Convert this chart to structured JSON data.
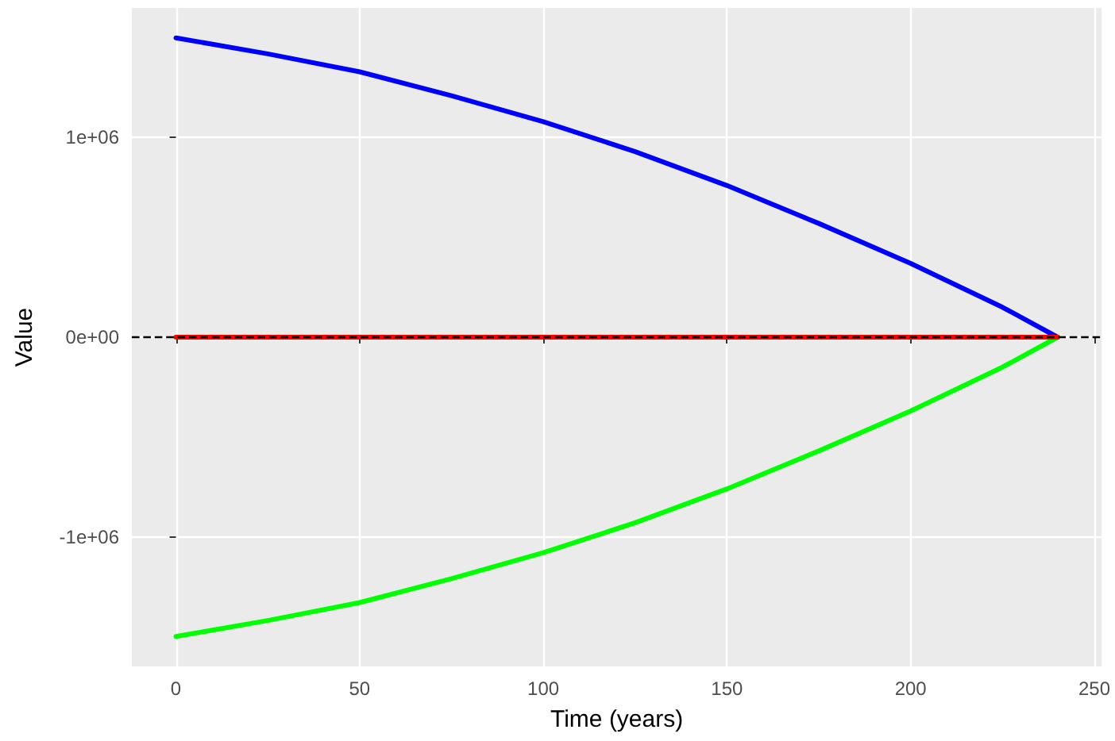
{
  "chart_data": {
    "type": "line",
    "xlabel": "Time (years)",
    "ylabel": "Value",
    "xlim": [
      -12,
      252
    ],
    "ylim": [
      -1650000,
      1650000
    ],
    "xticks": [
      0,
      50,
      100,
      150,
      200,
      250
    ],
    "yticks": [
      {
        "value": -1000000,
        "label": "-1e+06"
      },
      {
        "value": 0,
        "label": "0e+00"
      },
      {
        "value": 1000000,
        "label": "1e+06"
      }
    ],
    "grid": true,
    "marker": "none",
    "line_style": "solid",
    "series": [
      {
        "color": "#0000ff",
        "x": [
          0,
          25,
          50,
          75,
          100,
          125,
          150,
          175,
          200,
          225,
          240
        ],
        "values": [
          1500000,
          1420000,
          1330000,
          1210000,
          1080000,
          930000,
          760000,
          570000,
          370000,
          150000,
          0
        ]
      },
      {
        "color": "#00ff00",
        "x": [
          0,
          25,
          50,
          75,
          100,
          125,
          150,
          175,
          200,
          225,
          240
        ],
        "values": [
          -1500000,
          -1420000,
          -1330000,
          -1210000,
          -1080000,
          -930000,
          -760000,
          -570000,
          -370000,
          -150000,
          0
        ]
      },
      {
        "color": "#ff0000",
        "x": [
          0,
          240
        ],
        "values": [
          0,
          0
        ]
      }
    ],
    "ref_lines": [
      {
        "axis": "y",
        "value": 0,
        "color": "#000000",
        "line_style": "dashed"
      }
    ]
  }
}
